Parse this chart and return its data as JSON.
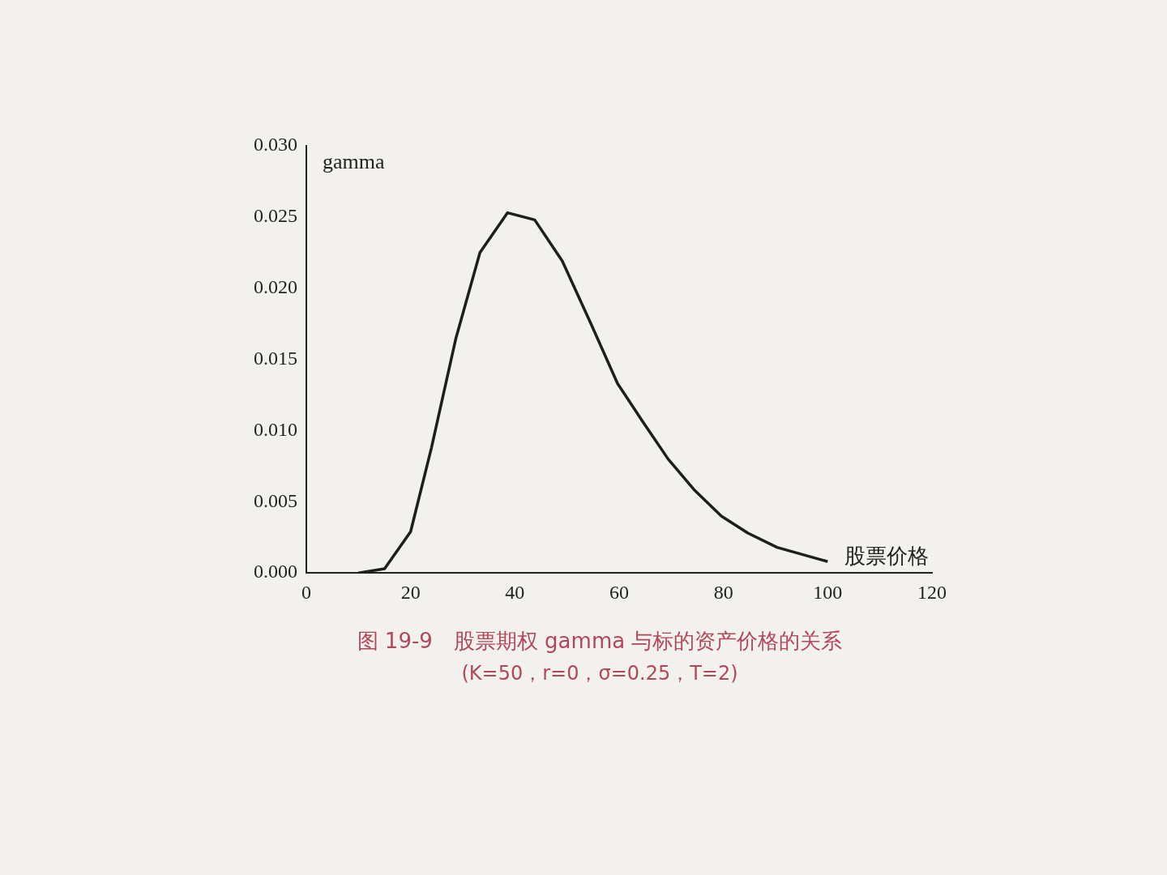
{
  "chart_data": {
    "type": "line",
    "title": "图 19-9　股票期权 gamma 与标的资产价格的关系",
    "subtitle": "(K=50，r=0，σ=0.25，T=2)",
    "xlabel": "股票价格",
    "ylabel": "gamma",
    "x": [
      10,
      15,
      20,
      24,
      28.7,
      33.3,
      38.6,
      43.8,
      49.1,
      54.6,
      59.7,
      64.4,
      69.4,
      74.5,
      79.6,
      84.7,
      90.3,
      100
    ],
    "series": [
      {
        "color": "#1e1e1e",
        "values": [
          0,
          0.0003,
          0.0029,
          0.0088,
          0.0165,
          0.0225,
          0.0253,
          0.0248,
          0.0219,
          0.0175,
          0.0133,
          0.0107,
          0.008,
          0.0058,
          0.004,
          0.0028,
          0.0018,
          0.0008
        ]
      }
    ],
    "xlim": [
      0,
      120
    ],
    "xticks": [
      0,
      20,
      40,
      60,
      80,
      100,
      120
    ],
    "ylim": [
      0,
      0.03
    ],
    "yticks": [
      {
        "value": 0,
        "label": "0.000"
      },
      {
        "value": 0.005,
        "label": "0.005"
      },
      {
        "value": 0.01,
        "label": "0.010"
      },
      {
        "value": 0.015,
        "label": "0.015"
      },
      {
        "value": 0.02,
        "label": "0.020"
      },
      {
        "value": 0.025,
        "label": "0.025"
      },
      {
        "value": 0.03,
        "label": "0.030"
      }
    ],
    "grid": false,
    "legend": false,
    "marker": "none",
    "line_style": "solid"
  }
}
